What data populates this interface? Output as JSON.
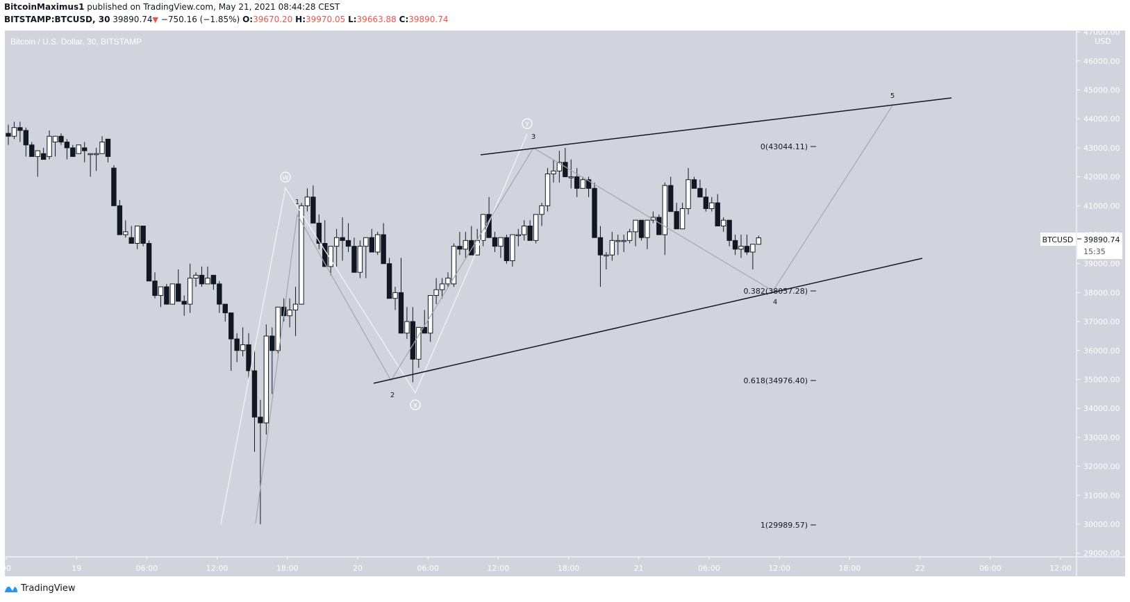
{
  "header": {
    "author": "BitcoinMaximus1",
    "published_text": "published on TradingView.com, May 21, 2021 08:44:28 CEST",
    "symbol_line": "BITSTAMP:BTCUSD, 30",
    "last": "39890.74",
    "change": "−750.16 (−1.85%)",
    "o_label": "O:",
    "o": "39670.20",
    "h_label": "H:",
    "h": "39970.05",
    "l_label": "L:",
    "l": "39663.88",
    "c_label": "C:",
    "c": "39890.74"
  },
  "chart_title": "Bitcoin / U.S. Dollar, 30, BITSTAMP",
  "price_label": {
    "symbol": "BTCUSD",
    "value": "39890.74",
    "countdown": "15:35"
  },
  "footer": {
    "brand": "TradingView"
  },
  "colors": {
    "background": "#d1d4dc",
    "bull": "#ffffff",
    "bear": "#131722",
    "axis_text": "#ffffff",
    "accent_red": "#ef5350"
  },
  "chart_data": {
    "type": "candlestick",
    "title": "Bitcoin / U.S. Dollar, 30, BITSTAMP",
    "ylabel": "USD",
    "ylim": [
      28700,
      47000
    ],
    "y_ticks": [
      "47000.00",
      "46000.00",
      "45000.00",
      "44000.00",
      "43000.00",
      "42000.00",
      "41000.00",
      "40000.00",
      "39000.00",
      "38000.00",
      "37000.00",
      "36000.00",
      "35000.00",
      "34000.00",
      "33000.00",
      "32000.00",
      "31000.00",
      "30000.00",
      "29000.00"
    ],
    "x_ticks": [
      "00",
      "19",
      "06:00",
      "12:00",
      "18:00",
      "20",
      "06:00",
      "12:00",
      "18:00",
      "21",
      "06:00",
      "12:00",
      "18:00",
      "22",
      "06:00",
      "12:00"
    ],
    "grid": false,
    "candles_ohlc": [
      [
        43500,
        43800,
        43100,
        43400
      ],
      [
        43400,
        43900,
        43300,
        43700
      ],
      [
        43700,
        43900,
        43200,
        43600
      ],
      [
        43600,
        43700,
        42700,
        43100
      ],
      [
        43100,
        43200,
        42900,
        42700
      ],
      [
        42700,
        42900,
        42000,
        42900
      ],
      [
        42800,
        43000,
        42600,
        42600
      ],
      [
        42700,
        43600,
        42600,
        43400
      ],
      [
        43200,
        43400,
        42700,
        43400
      ],
      [
        43400,
        43500,
        43100,
        43200
      ],
      [
        43200,
        43300,
        42600,
        43000
      ],
      [
        43000,
        43100,
        42700,
        42700
      ],
      [
        42800,
        43100,
        42900,
        43100
      ],
      [
        43000,
        43200,
        42500,
        42900
      ],
      [
        42800,
        42800,
        42000,
        42800
      ],
      [
        42800,
        43000,
        42200,
        42800
      ],
      [
        42800,
        43400,
        42800,
        43200
      ],
      [
        43300,
        43300,
        42500,
        42700
      ],
      [
        42300,
        42400,
        41700,
        41000
      ],
      [
        41000,
        41200,
        40400,
        40000
      ],
      [
        40000,
        40500,
        39900,
        40100
      ],
      [
        39900,
        40300,
        39700,
        39700
      ],
      [
        39700,
        40200,
        39500,
        40300
      ],
      [
        40300,
        40300,
        39600,
        39700
      ],
      [
        39700,
        39800,
        38800,
        38400
      ],
      [
        38400,
        38700,
        37800,
        37900
      ],
      [
        37900,
        38200,
        37500,
        38200
      ],
      [
        38200,
        38300,
        37600,
        37600
      ],
      [
        37600,
        38300,
        37700,
        38300
      ],
      [
        38300,
        38800,
        37700,
        37700
      ],
      [
        37700,
        37900,
        37200,
        37600
      ],
      [
        37600,
        39000,
        37300,
        38500
      ],
      [
        38500,
        38700,
        38200,
        38600
      ],
      [
        38600,
        38900,
        38200,
        38300
      ],
      [
        38300,
        38900,
        38300,
        38500
      ],
      [
        38600,
        38600,
        38100,
        38300
      ],
      [
        38300,
        38400,
        37300,
        37600
      ],
      [
        37600,
        37600,
        37000,
        37300
      ],
      [
        37300,
        37300,
        35300,
        36400
      ],
      [
        36400,
        36600,
        35600,
        36000
      ],
      [
        36000,
        36800,
        35800,
        36200
      ],
      [
        36200,
        36600,
        35000,
        35300
      ],
      [
        35300,
        36000,
        32500,
        33700
      ],
      [
        33700,
        34300,
        30000,
        33500
      ],
      [
        33500,
        36900,
        33100,
        36500
      ],
      [
        36500,
        36800,
        34500,
        36000
      ],
      [
        36000,
        37500,
        35900,
        37500
      ],
      [
        37500,
        37800,
        37000,
        37200
      ],
      [
        37200,
        37800,
        36800,
        37400
      ],
      [
        37400,
        38200,
        36500,
        37600
      ],
      [
        37600,
        41100,
        37600,
        41000
      ],
      [
        41000,
        41600,
        40800,
        41300
      ],
      [
        41300,
        41700,
        40600,
        40400
      ],
      [
        40400,
        40700,
        39500,
        39700
      ],
      [
        39700,
        40500,
        39400,
        38900
      ],
      [
        38900,
        39600,
        38600,
        39600
      ],
      [
        39600,
        40200,
        38900,
        39900
      ],
      [
        39900,
        40600,
        39100,
        39800
      ],
      [
        39800,
        40400,
        39400,
        39600
      ],
      [
        39600,
        39900,
        38700,
        38700
      ],
      [
        38700,
        39800,
        38500,
        39600
      ],
      [
        39600,
        39900,
        38500,
        39900
      ],
      [
        39900,
        40200,
        39400,
        39400
      ],
      [
        39400,
        40100,
        39300,
        40000
      ],
      [
        40000,
        40400,
        39400,
        39000
      ],
      [
        39000,
        39200,
        37800,
        37800
      ],
      [
        37800,
        38200,
        37400,
        38000
      ],
      [
        38000,
        39200,
        36700,
        36600
      ],
      [
        36600,
        37500,
        36400,
        37000
      ],
      [
        37000,
        37500,
        34900,
        35700
      ],
      [
        35700,
        36600,
        35400,
        36800
      ],
      [
        36800,
        37400,
        36600,
        36600
      ],
      [
        36600,
        37900,
        36300,
        37900
      ],
      [
        37900,
        38500,
        37600,
        38100
      ],
      [
        38100,
        38500,
        37800,
        38300
      ],
      [
        38300,
        38700,
        38200,
        38500
      ],
      [
        38300,
        39700,
        38200,
        39600
      ],
      [
        39600,
        40100,
        39300,
        39500
      ],
      [
        39500,
        40100,
        39200,
        39800
      ],
      [
        39800,
        40300,
        39400,
        39300
      ],
      [
        39300,
        40200,
        39300,
        39800
      ],
      [
        39800,
        40700,
        39600,
        40700
      ],
      [
        40700,
        41300,
        40200,
        39900
      ],
      [
        39900,
        40100,
        39400,
        39600
      ],
      [
        39600,
        39800,
        39200,
        39900
      ],
      [
        39900,
        40000,
        39000,
        39100
      ],
      [
        39100,
        40000,
        38900,
        40000
      ],
      [
        40000,
        40200,
        39600,
        40000
      ],
      [
        40000,
        40500,
        39800,
        40300
      ],
      [
        40300,
        40500,
        39800,
        39800
      ],
      [
        39800,
        40600,
        39700,
        40700
      ],
      [
        40700,
        41100,
        40300,
        41000
      ],
      [
        41000,
        42300,
        40800,
        42100
      ],
      [
        42100,
        42600,
        41800,
        42200
      ],
      [
        42200,
        42900,
        41800,
        42500
      ],
      [
        42500,
        43000,
        42200,
        42000
      ],
      [
        42000,
        42600,
        41600,
        42000
      ],
      [
        42000,
        42300,
        41300,
        41600
      ],
      [
        41600,
        42000,
        41600,
        41900
      ],
      [
        41900,
        42000,
        41300,
        41600
      ],
      [
        41600,
        41800,
        40700,
        39900
      ],
      [
        39900,
        40300,
        38200,
        39300
      ],
      [
        39300,
        39400,
        38800,
        39300
      ],
      [
        39300,
        40100,
        39100,
        39800
      ],
      [
        39800,
        40000,
        39300,
        39800
      ],
      [
        39800,
        40000,
        39400,
        39800
      ],
      [
        39800,
        40200,
        39700,
        40100
      ],
      [
        40100,
        40400,
        39600,
        40500
      ],
      [
        40500,
        40500,
        39800,
        39900
      ],
      [
        39900,
        40500,
        39500,
        40500
      ],
      [
        40500,
        40800,
        40400,
        40600
      ],
      [
        40600,
        40700,
        40000,
        40000
      ],
      [
        40000,
        41800,
        39300,
        41700
      ],
      [
        41700,
        42000,
        41000,
        40800
      ],
      [
        40800,
        41100,
        40300,
        40200
      ],
      [
        40200,
        41100,
        40400,
        40900
      ],
      [
        40900,
        42300,
        40700,
        41900
      ],
      [
        41900,
        42000,
        41600,
        41600
      ],
      [
        41600,
        41900,
        41400,
        41300
      ],
      [
        41300,
        41600,
        40800,
        40900
      ],
      [
        40900,
        41300,
        40800,
        41100
      ],
      [
        41100,
        41400,
        40700,
        40300
      ],
      [
        40300,
        40600,
        40100,
        40500
      ],
      [
        40500,
        40400,
        39600,
        39800
      ],
      [
        39800,
        40000,
        39300,
        39500
      ],
      [
        39500,
        40000,
        39200,
        39600
      ],
      [
        39600,
        40000,
        39300,
        39400
      ],
      [
        39400,
        39400,
        38800,
        39670
      ],
      [
        39670,
        39970,
        39663,
        39890
      ]
    ],
    "annotations": {
      "elliott_labels": [
        "1",
        "2",
        "3",
        "4",
        "5"
      ],
      "corrective_labels": [
        "W",
        "X",
        "Y"
      ],
      "fibonacci": [
        {
          "level": "0",
          "price": "43044.11",
          "label": "0(43044.11)"
        },
        {
          "level": "0.382",
          "price": "38057.28",
          "label": "0.382(38057.28)"
        },
        {
          "level": "0.618",
          "price": "34976.40",
          "label": "0.618(34976.40)"
        },
        {
          "level": "1",
          "price": "29989.57",
          "label": "1(29989.57)"
        }
      ],
      "channel": "ascending wedge/channel with upper and lower trendlines"
    }
  }
}
